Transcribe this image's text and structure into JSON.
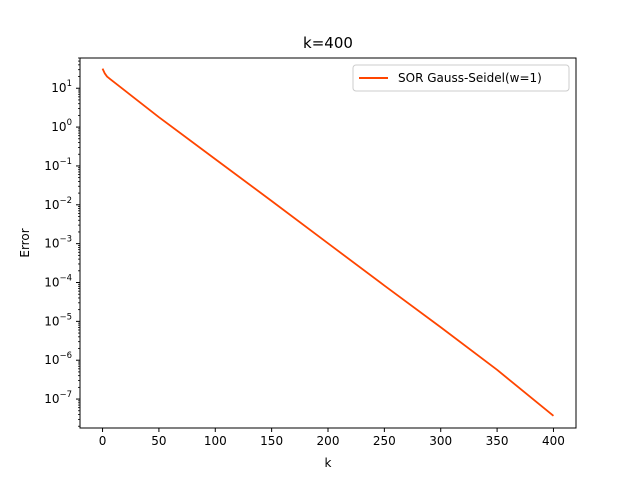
{
  "chart_data": {
    "type": "line",
    "title": "k=400",
    "xlabel": "k",
    "ylabel": "Error",
    "xlim": [
      -20,
      420
    ],
    "ylim": [
      1.8e-08,
      60
    ],
    "yscale": "log",
    "xticks": [
      0,
      50,
      100,
      150,
      200,
      250,
      300,
      350,
      400
    ],
    "yticks": [
      {
        "exp": 1,
        "label": "10",
        "sup": "1"
      },
      {
        "exp": 0,
        "label": "10",
        "sup": "0"
      },
      {
        "exp": -1,
        "label": "10",
        "sup": "−1"
      },
      {
        "exp": -2,
        "label": "10",
        "sup": "−2"
      },
      {
        "exp": -3,
        "label": "10",
        "sup": "−3"
      },
      {
        "exp": -4,
        "label": "10",
        "sup": "−4"
      },
      {
        "exp": -5,
        "label": "10",
        "sup": "−5"
      },
      {
        "exp": -6,
        "label": "10",
        "sup": "−6"
      },
      {
        "exp": -7,
        "label": "10",
        "sup": "−7"
      }
    ],
    "grid": false,
    "legend_position": "top-right",
    "series": [
      {
        "name": "SOR Gauss-Seidel(w=1)",
        "color": "#ff4500",
        "x": [
          0,
          2,
          4,
          7,
          10,
          50,
          100,
          150,
          200,
          250,
          300,
          350,
          400
        ],
        "y": [
          32,
          24,
          20,
          17,
          14.5,
          1.8,
          0.15,
          0.0125,
          0.00102,
          8.35e-05,
          7.05e-06,
          5.65e-07,
          3.7e-08
        ]
      }
    ]
  }
}
